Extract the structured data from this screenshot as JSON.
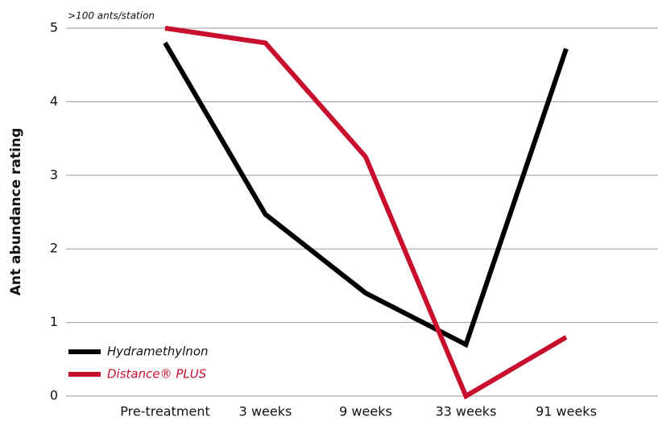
{
  "chart_data": {
    "type": "line",
    "y_label": "Ant abundance rating",
    "annotation": ">100 ants/station",
    "categories": [
      "Pre-treatment",
      "3 weeks",
      "9 weeks",
      "33 weeks",
      "91 weeks"
    ],
    "series": [
      {
        "name": "Hydramethylnon",
        "color": "#000000",
        "values": [
          4.8,
          2.47,
          1.4,
          0.7,
          4.72
        ]
      },
      {
        "name": "Distance® PLUS",
        "color": "#c8102e",
        "values": [
          5.0,
          4.8,
          3.25,
          0,
          0.8
        ]
      }
    ],
    "ylim": [
      0,
      5
    ],
    "yticks": [
      0,
      1,
      2,
      3,
      4,
      5
    ],
    "grid": true,
    "legend": "lower left"
  }
}
